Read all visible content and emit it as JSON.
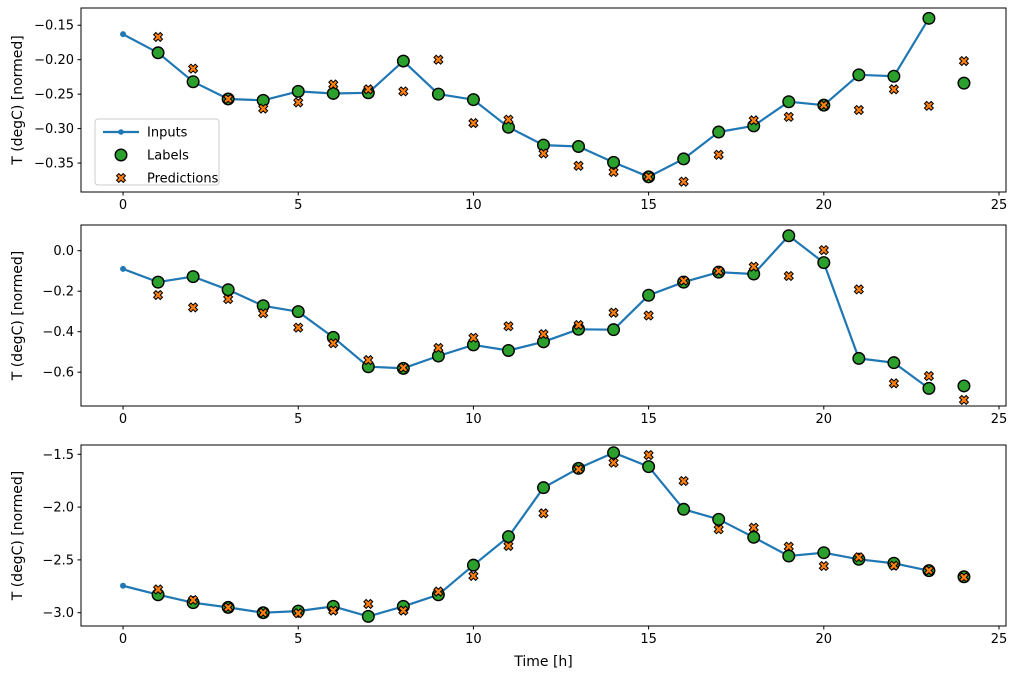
{
  "figure": {
    "background": "#ffffff",
    "xlabel": "Time [h]",
    "ylabel": "T (degC) [normed]"
  },
  "colors": {
    "inputs": "#1f77b4",
    "labels": "#2ca02c",
    "predictions": "#ff7f0e",
    "marker_edge": "#000000",
    "spine": "#000000",
    "legend_border": "#cccccc",
    "legend_background": "#ffffff"
  },
  "legend": {
    "entries": [
      {
        "label": "Inputs",
        "marker": "line-dot",
        "color": "#1f77b4"
      },
      {
        "label": "Labels",
        "marker": "circle",
        "color": "#2ca02c"
      },
      {
        "label": "Predictions",
        "marker": "x",
        "color": "#ff7f0e"
      }
    ]
  },
  "chart_data": [
    {
      "type": "line",
      "ylabel": "T (degC) [normed]",
      "xlim": [
        -1.2,
        25.2
      ],
      "ylim": [
        -0.392,
        -0.125
      ],
      "grid": false,
      "legend_visible": true,
      "xticks": {
        "values": [
          0,
          5,
          10,
          15,
          20,
          25
        ],
        "labels": [
          "0",
          "5",
          "10",
          "15",
          "20",
          "25"
        ]
      },
      "yticks": {
        "values": [
          -0.15,
          -0.2,
          -0.25,
          -0.3,
          -0.35
        ],
        "labels": [
          "−0.15",
          "−0.20",
          "−0.25",
          "−0.30",
          "−0.35"
        ]
      },
      "series": [
        {
          "name": "Inputs",
          "marker": "line-dot",
          "color": "#1f77b4",
          "x": [
            0,
            1,
            2,
            3,
            4,
            5,
            6,
            7,
            8,
            9,
            10,
            11,
            12,
            13,
            14,
            15,
            16,
            17,
            18,
            19,
            20,
            21,
            22,
            23
          ],
          "y": [
            -0.163,
            -0.19,
            -0.232,
            -0.257,
            -0.259,
            -0.246,
            -0.249,
            -0.248,
            -0.202,
            -0.25,
            -0.258,
            -0.298,
            -0.324,
            -0.326,
            -0.349,
            -0.37,
            -0.344,
            -0.305,
            -0.296,
            -0.261,
            -0.266,
            -0.222,
            -0.224,
            -0.14
          ]
        },
        {
          "name": "Labels",
          "marker": "circle",
          "color": "#2ca02c",
          "x": [
            1,
            2,
            3,
            4,
            5,
            6,
            7,
            8,
            9,
            10,
            11,
            12,
            13,
            14,
            15,
            16,
            17,
            18,
            19,
            20,
            21,
            22,
            23,
            24
          ],
          "y": [
            -0.19,
            -0.232,
            -0.257,
            -0.259,
            -0.246,
            -0.249,
            -0.248,
            -0.202,
            -0.25,
            -0.258,
            -0.298,
            -0.324,
            -0.326,
            -0.349,
            -0.37,
            -0.344,
            -0.305,
            -0.296,
            -0.261,
            -0.266,
            -0.222,
            -0.224,
            -0.14,
            -0.234
          ]
        },
        {
          "name": "Predictions",
          "marker": "x",
          "color": "#ff7f0e",
          "x": [
            1,
            2,
            3,
            4,
            5,
            6,
            7,
            8,
            9,
            10,
            11,
            12,
            13,
            14,
            15,
            16,
            17,
            18,
            19,
            20,
            21,
            22,
            23,
            24
          ],
          "y": [
            -0.167,
            -0.213,
            -0.257,
            -0.271,
            -0.262,
            -0.236,
            -0.243,
            -0.246,
            -0.2,
            -0.292,
            -0.287,
            -0.336,
            -0.354,
            -0.363,
            -0.37,
            -0.377,
            -0.338,
            -0.288,
            -0.283,
            -0.266,
            -0.273,
            -0.243,
            -0.267,
            -0.202
          ]
        }
      ]
    },
    {
      "type": "line",
      "ylabel": "T (degC) [normed]",
      "xlim": [
        -1.2,
        25.2
      ],
      "ylim": [
        -0.767,
        0.127
      ],
      "grid": false,
      "legend_visible": false,
      "xticks": {
        "values": [
          0,
          5,
          10,
          15,
          20,
          25
        ],
        "labels": [
          "0",
          "5",
          "10",
          "15",
          "20",
          "25"
        ]
      },
      "yticks": {
        "values": [
          0.0,
          -0.2,
          -0.4,
          -0.6
        ],
        "labels": [
          "0.0",
          "−0.2",
          "−0.4",
          "−0.6"
        ]
      },
      "series": [
        {
          "name": "Inputs",
          "marker": "line-dot",
          "color": "#1f77b4",
          "x": [
            0,
            1,
            2,
            3,
            4,
            5,
            6,
            7,
            8,
            9,
            10,
            11,
            12,
            13,
            14,
            15,
            16,
            17,
            18,
            19,
            20,
            21,
            22,
            23
          ],
          "y": [
            -0.09,
            -0.155,
            -0.128,
            -0.193,
            -0.272,
            -0.301,
            -0.428,
            -0.573,
            -0.581,
            -0.52,
            -0.465,
            -0.493,
            -0.45,
            -0.388,
            -0.39,
            -0.22,
            -0.155,
            -0.106,
            -0.115,
            0.074,
            -0.059,
            -0.532,
            -0.553,
            -0.68
          ]
        },
        {
          "name": "Labels",
          "marker": "circle",
          "color": "#2ca02c",
          "x": [
            1,
            2,
            3,
            4,
            5,
            6,
            7,
            8,
            9,
            10,
            11,
            12,
            13,
            14,
            15,
            16,
            17,
            18,
            19,
            20,
            21,
            22,
            23,
            24
          ],
          "y": [
            -0.155,
            -0.128,
            -0.193,
            -0.272,
            -0.301,
            -0.428,
            -0.573,
            -0.581,
            -0.52,
            -0.465,
            -0.493,
            -0.45,
            -0.388,
            -0.39,
            -0.22,
            -0.155,
            -0.106,
            -0.115,
            0.074,
            -0.059,
            -0.532,
            -0.553,
            -0.68,
            -0.668
          ]
        },
        {
          "name": "Predictions",
          "marker": "x",
          "color": "#ff7f0e",
          "x": [
            1,
            2,
            3,
            4,
            5,
            6,
            7,
            8,
            9,
            10,
            11,
            12,
            13,
            14,
            15,
            16,
            17,
            18,
            19,
            20,
            21,
            22,
            23,
            24
          ],
          "y": [
            -0.219,
            -0.28,
            -0.239,
            -0.309,
            -0.38,
            -0.457,
            -0.54,
            -0.578,
            -0.48,
            -0.43,
            -0.373,
            -0.412,
            -0.367,
            -0.306,
            -0.32,
            -0.148,
            -0.1,
            -0.079,
            -0.125,
            0.003,
            -0.191,
            -0.655,
            -0.619,
            -0.737
          ]
        }
      ]
    },
    {
      "type": "line",
      "ylabel": "T (degC) [normed]",
      "xlim": [
        -1.2,
        25.2
      ],
      "ylim": [
        -3.126,
        -1.412
      ],
      "grid": false,
      "legend_visible": false,
      "xticks": {
        "values": [
          0,
          5,
          10,
          15,
          20,
          25
        ],
        "labels": [
          "0",
          "5",
          "10",
          "15",
          "20",
          "25"
        ]
      },
      "yticks": {
        "values": [
          -1.5,
          -2.0,
          -2.5,
          -3.0
        ],
        "labels": [
          "−1.5",
          "−2.0",
          "−2.5",
          "−3.0"
        ]
      },
      "series": [
        {
          "name": "Inputs",
          "marker": "line-dot",
          "color": "#1f77b4",
          "x": [
            0,
            1,
            2,
            3,
            4,
            5,
            6,
            7,
            8,
            9,
            10,
            11,
            12,
            13,
            14,
            15,
            16,
            17,
            18,
            19,
            20,
            21,
            22,
            23
          ],
          "y": [
            -2.745,
            -2.83,
            -2.905,
            -2.95,
            -3.0,
            -2.985,
            -2.94,
            -3.035,
            -2.94,
            -2.83,
            -2.55,
            -2.28,
            -1.816,
            -1.633,
            -1.485,
            -1.617,
            -2.021,
            -2.116,
            -2.286,
            -2.463,
            -2.432,
            -2.494,
            -2.532,
            -2.602
          ]
        },
        {
          "name": "Labels",
          "marker": "circle",
          "color": "#2ca02c",
          "x": [
            1,
            2,
            3,
            4,
            5,
            6,
            7,
            8,
            9,
            10,
            11,
            12,
            13,
            14,
            15,
            16,
            17,
            18,
            19,
            20,
            21,
            22,
            23,
            24
          ],
          "y": [
            -2.83,
            -2.905,
            -2.95,
            -3.0,
            -2.985,
            -2.94,
            -3.035,
            -2.94,
            -2.83,
            -2.55,
            -2.28,
            -1.816,
            -1.633,
            -1.485,
            -1.617,
            -2.021,
            -2.116,
            -2.286,
            -2.463,
            -2.432,
            -2.494,
            -2.532,
            -2.602,
            -2.66
          ]
        },
        {
          "name": "Predictions",
          "marker": "x",
          "color": "#ff7f0e",
          "x": [
            1,
            2,
            3,
            4,
            5,
            6,
            7,
            8,
            9,
            10,
            11,
            12,
            13,
            14,
            15,
            16,
            17,
            18,
            19,
            20,
            21,
            22,
            23,
            24
          ],
          "y": [
            -2.78,
            -2.88,
            -2.95,
            -3.0,
            -3.005,
            -2.98,
            -2.917,
            -2.98,
            -2.8,
            -2.652,
            -2.368,
            -2.059,
            -1.642,
            -1.579,
            -1.507,
            -1.753,
            -2.21,
            -2.195,
            -2.375,
            -2.558,
            -2.475,
            -2.555,
            -2.6,
            -2.665
          ]
        }
      ]
    }
  ]
}
